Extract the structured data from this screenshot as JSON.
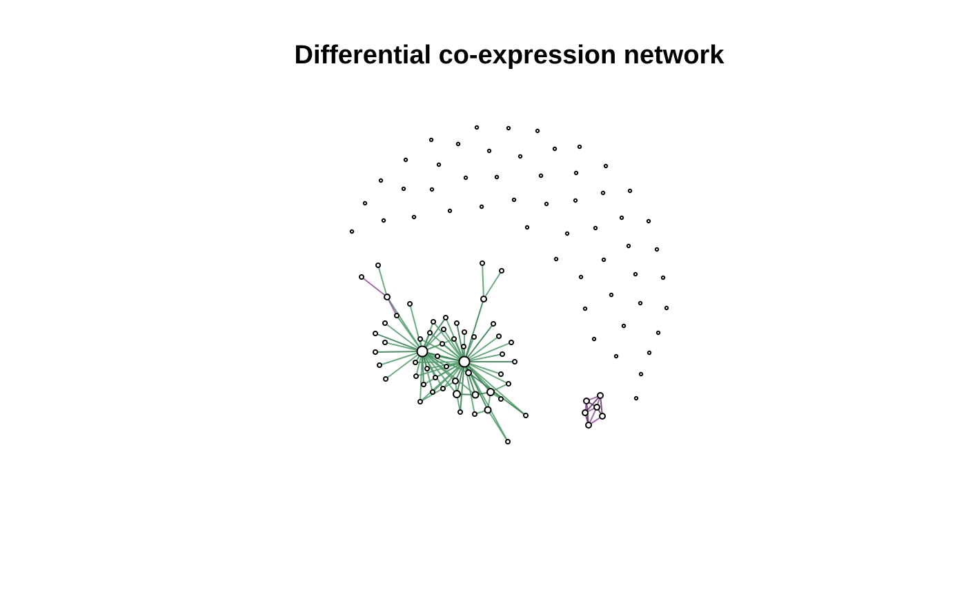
{
  "title": "Differential co-expression network",
  "colors": {
    "background": "#ffffff",
    "node_fill": "#ffffff",
    "node_stroke": "#000000",
    "edge_positive": "#4f9a68",
    "edge_positive_dark": "#2f7a4a",
    "edge_negative": "#8e4f9a",
    "edge_negative_dark": "#5a2e63"
  }
}
